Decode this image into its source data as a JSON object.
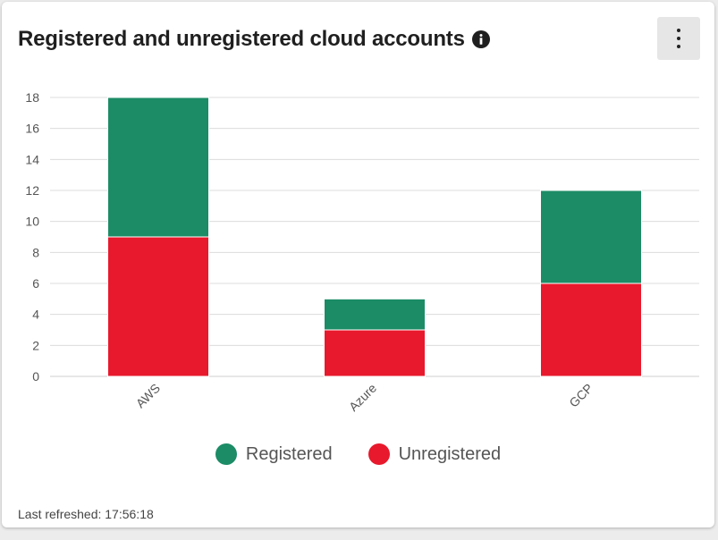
{
  "header": {
    "title": "Registered and unregistered cloud accounts",
    "info_icon": "info-icon",
    "menu_icon": "more-vertical-icon"
  },
  "footer": {
    "last_refreshed": "Last refreshed: 17:56:18"
  },
  "chart_data": {
    "type": "bar",
    "stacked": true,
    "categories": [
      "AWS",
      "Azure",
      "GCP"
    ],
    "series": [
      {
        "name": "Unregistered",
        "color": "#e8192c",
        "values": [
          9,
          3,
          6
        ]
      },
      {
        "name": "Registered",
        "color": "#1c8c66",
        "values": [
          9,
          2,
          6
        ]
      }
    ],
    "legend_order": [
      "Registered",
      "Unregistered"
    ],
    "ylim": [
      0,
      18
    ],
    "yticks": [
      0,
      2,
      4,
      6,
      8,
      10,
      12,
      14,
      16,
      18
    ],
    "grid": true,
    "legend_position": "bottom"
  }
}
